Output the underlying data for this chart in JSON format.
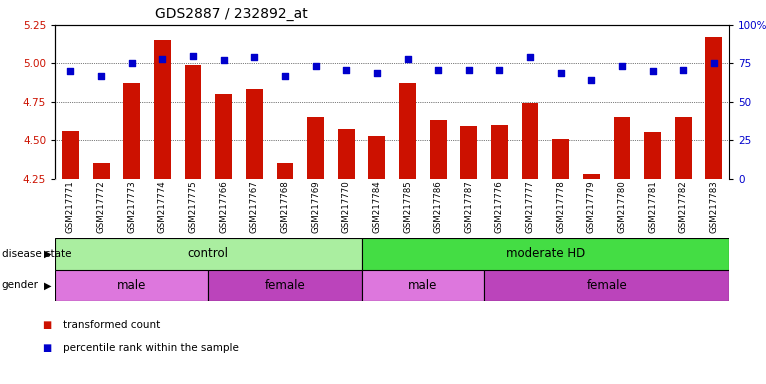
{
  "title": "GDS2887 / 232892_at",
  "samples": [
    "GSM217771",
    "GSM217772",
    "GSM217773",
    "GSM217774",
    "GSM217775",
    "GSM217766",
    "GSM217767",
    "GSM217768",
    "GSM217769",
    "GSM217770",
    "GSM217784",
    "GSM217785",
    "GSM217786",
    "GSM217787",
    "GSM217776",
    "GSM217777",
    "GSM217778",
    "GSM217779",
    "GSM217780",
    "GSM217781",
    "GSM217782",
    "GSM217783"
  ],
  "transformed_count": [
    4.56,
    4.35,
    4.87,
    5.15,
    4.99,
    4.8,
    4.83,
    4.35,
    4.65,
    4.57,
    4.53,
    4.87,
    4.63,
    4.59,
    4.6,
    4.74,
    4.51,
    4.28,
    4.65,
    4.55,
    4.65,
    5.17
  ],
  "percentile_rank": [
    70,
    67,
    75,
    78,
    80,
    77,
    79,
    67,
    73,
    71,
    69,
    78,
    71,
    71,
    71,
    79,
    69,
    64,
    73,
    70,
    71,
    75
  ],
  "ylim_left": [
    4.25,
    5.25
  ],
  "ylim_right": [
    0,
    100
  ],
  "yticks_left": [
    4.25,
    4.5,
    4.75,
    5.0,
    5.25
  ],
  "yticks_right": [
    0,
    25,
    50,
    75,
    100
  ],
  "bar_color": "#cc1100",
  "dot_color": "#0000cc",
  "disease_state_regions": [
    {
      "label": "control",
      "start": 0,
      "end": 10,
      "color": "#aaeea0"
    },
    {
      "label": "moderate HD",
      "start": 10,
      "end": 22,
      "color": "#44dd44"
    }
  ],
  "gender_regions": [
    {
      "label": "male",
      "start": 0,
      "end": 5,
      "color": "#dd77dd"
    },
    {
      "label": "female",
      "start": 5,
      "end": 10,
      "color": "#bb44bb"
    },
    {
      "label": "male",
      "start": 10,
      "end": 14,
      "color": "#dd77dd"
    },
    {
      "label": "female",
      "start": 14,
      "end": 22,
      "color": "#bb44bb"
    }
  ],
  "disease_state_label": "disease state",
  "gender_label": "gender",
  "legend_items": [
    {
      "label": "transformed count",
      "color": "#cc1100"
    },
    {
      "label": "percentile rank within the sample",
      "color": "#0000cc"
    }
  ],
  "bg_color": "#ffffff",
  "tick_area_bg": "#cccccc"
}
